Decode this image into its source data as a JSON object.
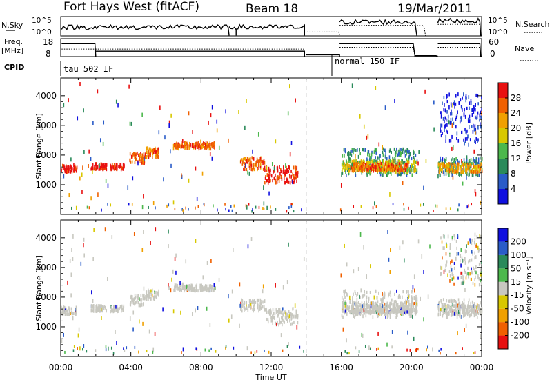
{
  "header": {
    "title": "Fort Hays West (fitACF)",
    "beam": "Beam 18",
    "date": "19/Mar/2011"
  },
  "nsky_panel": {
    "left_label": "N.Sky",
    "right_label": "N.Search",
    "left_ticks": [
      "10^5",
      "10^0"
    ],
    "right_ticks": [
      "10^5",
      "10^0"
    ]
  },
  "freq_panel": {
    "left_label_1": "Freq.",
    "left_label_2": "[MHz]",
    "right_label": "Nave",
    "left_ticks": [
      "18",
      "8"
    ],
    "right_ticks": [
      "60",
      "0"
    ]
  },
  "cpid": {
    "label": "CPID",
    "modes": [
      {
        "name": "tau 502 IF",
        "start": 0.0,
        "end": 14.0
      },
      {
        "name": "normal 150 IF",
        "start": 16.0,
        "end": 24.0
      }
    ]
  },
  "colors": {
    "power": [
      "#1010e0",
      "#2a5cc8",
      "#2a8a5a",
      "#4cb84c",
      "#d8c800",
      "#f0a000",
      "#f06000",
      "#e81010"
    ],
    "velocity": [
      "#e81010",
      "#f06000",
      "#f0a000",
      "#d8c800",
      "#c8c8c0",
      "#4cb84c",
      "#2a8a5a",
      "#2a5cc8",
      "#1010e0"
    ],
    "ground": "#c8c8c0"
  },
  "power_colorbar": {
    "label": "Power [dB]",
    "ticks": [
      "4",
      "8",
      "12",
      "16",
      "20",
      "24",
      "28"
    ]
  },
  "velocity_colorbar": {
    "label": "Velocity [m s⁻¹]",
    "ticks": [
      "-200",
      "-100",
      "-50",
      "-15",
      "15",
      "50",
      "100",
      "200"
    ]
  },
  "chart_data": [
    {
      "type": "heatmap",
      "name": "power",
      "ylabel": "Slant Range [km]",
      "xlabel": "Time UT",
      "xlim": [
        0,
        24
      ],
      "ylim": [
        0,
        4600
      ],
      "yticks": [
        "1000",
        "2000",
        "3000",
        "4000"
      ],
      "xticks": [
        "00:00",
        "04:00",
        "08:00",
        "12:00",
        "16:00",
        "20:00",
        "00:00"
      ],
      "gap_start": 14.0,
      "clusters": [
        {
          "t0": 0.0,
          "t1": 0.9,
          "r0": 1400,
          "r1": 1650,
          "level": 7
        },
        {
          "t0": 1.7,
          "t1": 2.6,
          "r0": 1500,
          "r1": 1700,
          "level": 7
        },
        {
          "t0": 2.8,
          "t1": 3.6,
          "r0": 1500,
          "r1": 1680,
          "level": 7
        },
        {
          "t0": 3.9,
          "t1": 4.8,
          "r0": 1700,
          "r1": 2050,
          "level": 6
        },
        {
          "t0": 4.8,
          "t1": 5.6,
          "r0": 1900,
          "r1": 2250,
          "level": 6
        },
        {
          "t0": 6.4,
          "t1": 8.8,
          "r0": 2200,
          "r1": 2400,
          "level": 6
        },
        {
          "t0": 10.2,
          "t1": 11.6,
          "r0": 1500,
          "r1": 1900,
          "level": 6
        },
        {
          "t0": 11.6,
          "t1": 13.5,
          "r0": 1050,
          "r1": 1600,
          "level": 7
        },
        {
          "t0": 16.0,
          "t1": 20.3,
          "r0": 1300,
          "r1": 2200,
          "level": 2
        },
        {
          "t0": 16.0,
          "t1": 20.3,
          "r0": 1400,
          "r1": 1800,
          "level": 4
        },
        {
          "t0": 16.5,
          "t1": 19.8,
          "r0": 1450,
          "r1": 1700,
          "level": 6
        },
        {
          "t0": 21.5,
          "t1": 24.0,
          "r0": 1300,
          "r1": 1900,
          "level": 2
        },
        {
          "t0": 21.5,
          "t1": 24.0,
          "r0": 1400,
          "r1": 1700,
          "level": 5
        },
        {
          "t0": 21.6,
          "t1": 24.0,
          "r0": 2400,
          "r1": 4100,
          "level": 0
        }
      ]
    },
    {
      "type": "heatmap",
      "name": "velocity",
      "ylabel": "Slant Range [km]",
      "xlabel": "Time UT",
      "xlim": [
        0,
        24
      ],
      "ylim": [
        0,
        4600
      ],
      "yticks": [
        "1000",
        "2000",
        "3000",
        "4000"
      ],
      "xticks": [
        "00:00",
        "04:00",
        "08:00",
        "12:00",
        "16:00",
        "20:00",
        "00:00"
      ],
      "gap_start": 14.0
    }
  ]
}
